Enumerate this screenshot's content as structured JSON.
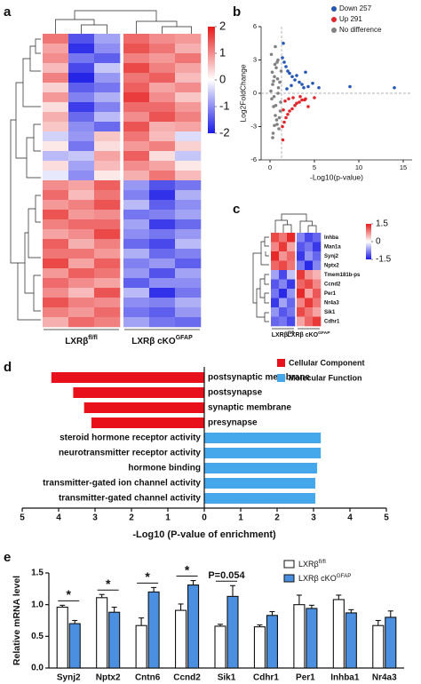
{
  "chart_data": [
    {
      "type": "heatmap",
      "panel": "a",
      "column_labels": [
        {
          "text": "LXRβ",
          "sup": "fl/fl"
        },
        {
          "text": "LXRβ cKO",
          "sup": "GFAP"
        }
      ],
      "zlim": [
        -2,
        2
      ],
      "zticks": [
        2,
        1,
        0,
        -1,
        -2
      ],
      "colors": [
        "#1a1ae6",
        "#ffffff",
        "#e61a1a"
      ],
      "values": [
        [
          1.2,
          -1.5,
          -0.8,
          1.3,
          1.0,
          0.9
        ],
        [
          0.8,
          -1.8,
          -1.0,
          1.5,
          1.2,
          0.7
        ],
        [
          1.0,
          -1.2,
          -1.4,
          1.1,
          0.9,
          1.2
        ],
        [
          0.6,
          -1.6,
          -0.5,
          1.6,
          1.1,
          0.8
        ],
        [
          1.1,
          -1.9,
          -0.9,
          1.2,
          1.4,
          0.6
        ],
        [
          0.4,
          -1.4,
          -1.2,
          1.4,
          0.8,
          1.0
        ],
        [
          0.9,
          -1.1,
          -0.7,
          1.7,
          1.0,
          0.5
        ],
        [
          0.3,
          -1.7,
          -1.1,
          1.3,
          1.3,
          0.9
        ],
        [
          0.7,
          -1.3,
          -0.6,
          1.0,
          1.5,
          1.1
        ],
        [
          0.5,
          -1.0,
          -1.3,
          1.5,
          0.7,
          0.8
        ],
        [
          -0.4,
          -0.9,
          0.5,
          1.2,
          0.6,
          -0.3
        ],
        [
          0.2,
          -1.2,
          0.3,
          0.9,
          1.1,
          0.4
        ],
        [
          -0.6,
          -0.5,
          0.8,
          1.4,
          0.3,
          -0.5
        ],
        [
          0.3,
          -0.8,
          0.6,
          1.0,
          0.8,
          0.2
        ],
        [
          -0.2,
          -1.0,
          0.2,
          0.7,
          1.2,
          0.6
        ],
        [
          1.0,
          0.8,
          1.4,
          -0.9,
          -1.5,
          -1.2
        ],
        [
          1.3,
          0.6,
          1.2,
          -1.1,
          -1.8,
          -0.7
        ],
        [
          0.9,
          1.1,
          1.5,
          -0.6,
          -1.4,
          -1.0
        ],
        [
          1.5,
          0.9,
          1.0,
          -1.2,
          -1.1,
          -0.8
        ],
        [
          1.1,
          1.3,
          1.3,
          -0.8,
          -1.7,
          -1.3
        ],
        [
          0.8,
          1.0,
          1.6,
          -1.0,
          -1.2,
          -0.9
        ],
        [
          1.4,
          0.7,
          1.1,
          -1.3,
          -1.6,
          -0.6
        ],
        [
          1.2,
          1.2,
          0.9,
          -0.7,
          -1.3,
          -1.1
        ],
        [
          1.6,
          0.8,
          1.4,
          -1.1,
          -0.9,
          -1.4
        ],
        [
          0.9,
          1.4,
          1.2,
          -0.9,
          -1.5,
          -0.8
        ],
        [
          1.3,
          1.0,
          0.8,
          -1.4,
          -1.0,
          -1.0
        ],
        [
          1.0,
          0.6,
          1.5,
          -0.6,
          -1.8,
          -1.2
        ],
        [
          1.5,
          1.1,
          1.0,
          -1.0,
          -1.1,
          -0.7
        ],
        [
          1.1,
          0.9,
          1.3,
          -1.2,
          -1.4,
          -0.9
        ],
        [
          0.7,
          1.3,
          1.1,
          -0.8,
          -1.2,
          -1.3
        ]
      ]
    },
    {
      "type": "scatter",
      "panel": "b",
      "xlabel": "-Log10(p-value)",
      "ylabel": "Log2FoldChange",
      "xlim": [
        -1,
        16
      ],
      "ylim": [
        -6,
        6
      ],
      "xticks": [
        0,
        5,
        10,
        15
      ],
      "yticks": [
        -6,
        -3,
        0,
        3,
        6
      ],
      "vline": 1.3,
      "hline": 0,
      "legend": "top-right",
      "series": [
        {
          "name": "Down 257",
          "color": "#2356b5",
          "x": [
            1.4,
            1.6,
            1.8,
            2.0,
            2.2,
            2.5,
            2.8,
            3.0,
            3.3,
            3.6,
            4.0,
            4.3,
            4.8,
            5.5,
            1.5,
            1.9,
            2.4,
            3.8,
            9.0,
            14.0
          ],
          "y": [
            3.2,
            2.8,
            2.4,
            2.0,
            1.8,
            1.5,
            1.2,
            1.6,
            1.0,
            0.8,
            1.9,
            0.6,
            0.9,
            0.5,
            4.5,
            0.4,
            0.7,
            0.5,
            0.6,
            0.5
          ]
        },
        {
          "name": "Up 291",
          "color": "#e0262b",
          "x": [
            1.4,
            1.6,
            1.8,
            2.0,
            2.2,
            2.5,
            2.8,
            3.0,
            3.3,
            3.6,
            4.0,
            4.3,
            5.0,
            1.5,
            1.7,
            2.1,
            2.6,
            3.4,
            3.9,
            1.45
          ],
          "y": [
            -3.0,
            -2.6,
            -2.2,
            -1.9,
            -1.6,
            -1.4,
            -1.1,
            -0.9,
            -0.8,
            -0.6,
            -0.5,
            -1.2,
            -0.4,
            -1.5,
            -0.7,
            -0.5,
            -0.4,
            -0.3,
            -0.6,
            -4.2
          ]
        },
        {
          "name": "No difference",
          "color": "#808080",
          "x": [
            0.1,
            0.2,
            0.3,
            0.4,
            0.5,
            0.6,
            0.7,
            0.8,
            0.9,
            1.0,
            1.1,
            1.2,
            0.15,
            0.35,
            0.55,
            0.75,
            0.95,
            1.15,
            0.25,
            0.45,
            0.65,
            0.85,
            1.05,
            1.25,
            0.3,
            0.6,
            0.9,
            0.5,
            0.8,
            0.4
          ],
          "y": [
            0.2,
            -0.5,
            0.8,
            -1.2,
            1.5,
            -2.0,
            2.3,
            -2.8,
            3.0,
            -3.2,
            1.0,
            -0.8,
            3.5,
            -3.6,
            2.6,
            -2.4,
            0.5,
            -1.6,
            1.9,
            -0.3,
            -1.1,
            1.3,
            -2.2,
            2.0,
            -4.0,
            4.2,
            0.0,
            -2.9,
            2.8,
            1.1
          ]
        }
      ]
    },
    {
      "type": "heatmap",
      "panel": "c",
      "row_labels": [
        "Inhba",
        "Man1a",
        "Synj2",
        "Nptx2",
        "Tmem181b-ps",
        "Ccnd2",
        "Per1",
        "Nr4a3",
        "Sik1",
        "Cdhr1"
      ],
      "column_labels": [
        {
          "text": "LXRβ",
          "sup": "fl/fl"
        },
        {
          "text": "LXRβ cKO",
          "sup": "GFAP"
        }
      ],
      "zlim": [
        -1.5,
        1.5
      ],
      "zticks": [
        1.5,
        0,
        -1.5
      ],
      "colors": [
        "#1a1ae6",
        "#ffffff",
        "#e61a1a"
      ],
      "values": [
        [
          1.2,
          0.9,
          1.4,
          -0.8,
          -1.2,
          -1.0
        ],
        [
          0.8,
          1.3,
          0.6,
          -1.1,
          -0.9,
          -1.3
        ],
        [
          1.4,
          0.7,
          1.0,
          -1.3,
          -0.7,
          -1.0
        ],
        [
          1.0,
          1.2,
          0.9,
          -0.9,
          -1.4,
          -0.8
        ],
        [
          -0.6,
          -1.2,
          -0.4,
          1.3,
          0.7,
          0.5
        ],
        [
          -1.1,
          -0.8,
          -1.3,
          1.0,
          1.2,
          0.8
        ],
        [
          -0.9,
          -1.4,
          -0.7,
          1.4,
          0.6,
          1.1
        ],
        [
          -1.3,
          -0.6,
          -1.0,
          0.8,
          1.3,
          0.9
        ],
        [
          -0.7,
          -1.1,
          -0.9,
          1.2,
          0.9,
          0.6
        ],
        [
          -1.0,
          -0.9,
          -1.2,
          0.6,
          1.0,
          1.3
        ]
      ]
    },
    {
      "type": "bar",
      "orientation": "horizontal",
      "panel": "d",
      "xlabel": "-Log10 (P-value of enrichment)",
      "xlim": [
        -5,
        5
      ],
      "xticks": [
        {
          "value": -5,
          "label": "5"
        },
        {
          "value": -4,
          "label": "4"
        },
        {
          "value": -3,
          "label": "3"
        },
        {
          "value": -2,
          "label": "2"
        },
        {
          "value": -1,
          "label": "1"
        },
        0,
        1,
        2,
        3,
        4,
        5
      ],
      "legend": "top-right",
      "series": [
        {
          "name": "Cellular Component",
          "color": "#e8101a",
          "categories": [
            "postsynaptic membrane",
            "postsynapse",
            "synaptic membrane",
            "presynapse"
          ],
          "values": [
            -4.2,
            -3.6,
            -3.3,
            -3.1
          ]
        },
        {
          "name": "Molecular Function",
          "color": "#45a8ea",
          "categories": [
            "steroid hormone receptor activity",
            "neurotransmitter receptor activity",
            "hormone binding",
            "transmitter-gated ion channel activity",
            "transmitter-gated channel activity"
          ],
          "values": [
            3.2,
            3.2,
            3.1,
            3.05,
            3.05
          ]
        }
      ]
    },
    {
      "type": "bar",
      "orientation": "vertical",
      "panel": "e",
      "ylabel": "Relative mRNA level",
      "categories": [
        "Synj2",
        "Nptx2",
        "Cntn6",
        "Ccnd2",
        "Sik1",
        "Cdhr1",
        "Per1",
        "Inhba1",
        "Nr4a3"
      ],
      "ylim": [
        0,
        1.5
      ],
      "yticks": [
        {
          "value": 0,
          "label": "0.0"
        },
        {
          "value": 0.5,
          "label": "0.5"
        },
        {
          "value": 1,
          "label": "1.0"
        },
        {
          "value": 1.5,
          "label": "1.5"
        }
      ],
      "legend": "top-right",
      "series": [
        {
          "name": "LXRβ",
          "name_sup": "fl/fl",
          "color": "#ffffff",
          "values": [
            0.96,
            1.11,
            0.67,
            0.91,
            0.66,
            0.65,
            1.0,
            1.08,
            0.67
          ],
          "errors": [
            0.03,
            0.05,
            0.12,
            0.1,
            0.03,
            0.03,
            0.15,
            0.07,
            0.08
          ]
        },
        {
          "name": "LXRβ cKO",
          "name_sup": "GFAP",
          "color": "#4a8fe0",
          "values": [
            0.7,
            0.88,
            1.2,
            1.31,
            1.13,
            0.83,
            0.94,
            0.87,
            0.8
          ],
          "errors": [
            0.05,
            0.08,
            0.07,
            0.07,
            0.17,
            0.06,
            0.05,
            0.05,
            0.1
          ]
        }
      ],
      "annotations": [
        {
          "text": "*",
          "category": "Synj2"
        },
        {
          "text": "*",
          "category": "Nptx2"
        },
        {
          "text": "*",
          "category": "Cntn6"
        },
        {
          "text": "*",
          "category": "Ccnd2"
        },
        {
          "text": "P=0.054",
          "category": "Sik1"
        }
      ]
    }
  ]
}
